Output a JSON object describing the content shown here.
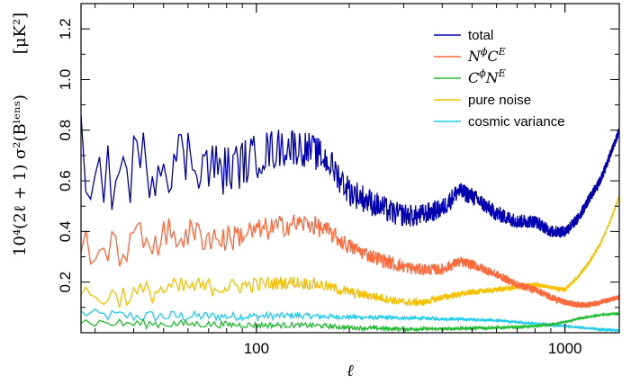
{
  "chart_data": {
    "type": "line",
    "xscale": "log",
    "xlim": [
      27,
      1500
    ],
    "ylim": [
      0,
      1.3
    ],
    "xlabel": "ℓ",
    "ylabel": "10⁴(2ℓ + 1) σ²(Bˡᵉⁿˢ)",
    "yunit": "[μK²]",
    "x_ticks": [
      {
        "value": 100,
        "label": "100"
      },
      {
        "value": 1000,
        "label": "1000"
      }
    ],
    "y_ticks": [
      {
        "value": 0.2,
        "label": "0.2"
      },
      {
        "value": 0.4,
        "label": "0.4"
      },
      {
        "value": 0.6,
        "label": "0.6"
      },
      {
        "value": 0.8,
        "label": "0.8"
      },
      {
        "value": 1.0,
        "label": "1.0"
      },
      {
        "value": 1.2,
        "label": "1.2"
      }
    ],
    "legend_position": "top-right",
    "grid": false,
    "series": [
      {
        "name": "total",
        "legend_kind": "text",
        "color": "#0000b0",
        "noise": 0.09,
        "noise_decay": 0.6,
        "points": [
          [
            27,
            0.72
          ],
          [
            30,
            0.62
          ],
          [
            35,
            0.6
          ],
          [
            40,
            0.66
          ],
          [
            50,
            0.68
          ],
          [
            60,
            0.7
          ],
          [
            70,
            0.66
          ],
          [
            80,
            0.64
          ],
          [
            90,
            0.67
          ],
          [
            110,
            0.72
          ],
          [
            130,
            0.74
          ],
          [
            150,
            0.72
          ],
          [
            170,
            0.68
          ],
          [
            200,
            0.56
          ],
          [
            240,
            0.51
          ],
          [
            280,
            0.47
          ],
          [
            330,
            0.46
          ],
          [
            400,
            0.49
          ],
          [
            450,
            0.56
          ],
          [
            500,
            0.54
          ],
          [
            600,
            0.47
          ],
          [
            700,
            0.44
          ],
          [
            800,
            0.44
          ],
          [
            900,
            0.4
          ],
          [
            1000,
            0.4
          ],
          [
            1100,
            0.45
          ],
          [
            1200,
            0.53
          ],
          [
            1300,
            0.6
          ],
          [
            1400,
            0.7
          ],
          [
            1500,
            0.8
          ]
        ]
      },
      {
        "name": "NϕCE",
        "legend_kind": "math",
        "legend_parts": [
          [
            "N",
            ""
          ],
          [
            "ϕ",
            "sup"
          ],
          [
            "C",
            ""
          ],
          [
            "E",
            "sup"
          ]
        ],
        "color": "#ff6a3c",
        "noise": 0.05,
        "noise_decay": 0.6,
        "points": [
          [
            27,
            0.38
          ],
          [
            30,
            0.33
          ],
          [
            35,
            0.32
          ],
          [
            40,
            0.36
          ],
          [
            50,
            0.38
          ],
          [
            60,
            0.39
          ],
          [
            70,
            0.38
          ],
          [
            80,
            0.37
          ],
          [
            90,
            0.39
          ],
          [
            110,
            0.41
          ],
          [
            130,
            0.43
          ],
          [
            150,
            0.43
          ],
          [
            170,
            0.4
          ],
          [
            200,
            0.34
          ],
          [
            240,
            0.3
          ],
          [
            280,
            0.27
          ],
          [
            330,
            0.25
          ],
          [
            400,
            0.25
          ],
          [
            450,
            0.28
          ],
          [
            500,
            0.27
          ],
          [
            600,
            0.23
          ],
          [
            700,
            0.19
          ],
          [
            800,
            0.17
          ],
          [
            900,
            0.14
          ],
          [
            1000,
            0.12
          ],
          [
            1100,
            0.11
          ],
          [
            1200,
            0.11
          ],
          [
            1300,
            0.12
          ],
          [
            1400,
            0.13
          ],
          [
            1500,
            0.14
          ]
        ]
      },
      {
        "name": "CϕNE",
        "legend_kind": "math",
        "legend_parts": [
          [
            "C",
            ""
          ],
          [
            "ϕ",
            "sup"
          ],
          [
            "N",
            ""
          ],
          [
            "E",
            "sup"
          ]
        ],
        "color": "#22bb33",
        "noise": 0.012,
        "noise_decay": 0.5,
        "points": [
          [
            27,
            0.045
          ],
          [
            30,
            0.04
          ],
          [
            40,
            0.035
          ],
          [
            60,
            0.035
          ],
          [
            80,
            0.032
          ],
          [
            100,
            0.03
          ],
          [
            130,
            0.03
          ],
          [
            160,
            0.028
          ],
          [
            200,
            0.02
          ],
          [
            300,
            0.015
          ],
          [
            400,
            0.015
          ],
          [
            500,
            0.018
          ],
          [
            600,
            0.02
          ],
          [
            700,
            0.022
          ],
          [
            800,
            0.026
          ],
          [
            900,
            0.032
          ],
          [
            1000,
            0.042
          ],
          [
            1100,
            0.055
          ],
          [
            1200,
            0.062
          ],
          [
            1300,
            0.07
          ],
          [
            1400,
            0.074
          ],
          [
            1500,
            0.075
          ]
        ]
      },
      {
        "name": "pure noise",
        "legend_kind": "text",
        "color": "#f5c000",
        "noise": 0.03,
        "noise_decay": 0.6,
        "points": [
          [
            27,
            0.16
          ],
          [
            30,
            0.14
          ],
          [
            40,
            0.15
          ],
          [
            50,
            0.17
          ],
          [
            60,
            0.18
          ],
          [
            80,
            0.18
          ],
          [
            100,
            0.19
          ],
          [
            130,
            0.2
          ],
          [
            160,
            0.19
          ],
          [
            200,
            0.16
          ],
          [
            250,
            0.14
          ],
          [
            300,
            0.12
          ],
          [
            350,
            0.12
          ],
          [
            400,
            0.14
          ],
          [
            500,
            0.16
          ],
          [
            600,
            0.17
          ],
          [
            700,
            0.18
          ],
          [
            800,
            0.19
          ],
          [
            900,
            0.18
          ],
          [
            1000,
            0.17
          ],
          [
            1100,
            0.22
          ],
          [
            1200,
            0.28
          ],
          [
            1300,
            0.35
          ],
          [
            1400,
            0.44
          ],
          [
            1500,
            0.54
          ]
        ]
      },
      {
        "name": "cosmic variance",
        "legend_kind": "text",
        "color": "#22ccee",
        "noise": 0.015,
        "noise_decay": 0.7,
        "points": [
          [
            27,
            0.08
          ],
          [
            30,
            0.07
          ],
          [
            40,
            0.065
          ],
          [
            60,
            0.065
          ],
          [
            80,
            0.065
          ],
          [
            100,
            0.065
          ],
          [
            130,
            0.068
          ],
          [
            160,
            0.065
          ],
          [
            200,
            0.062
          ],
          [
            300,
            0.058
          ],
          [
            400,
            0.055
          ],
          [
            500,
            0.052
          ],
          [
            600,
            0.048
          ],
          [
            700,
            0.042
          ],
          [
            800,
            0.036
          ],
          [
            900,
            0.03
          ],
          [
            1000,
            0.026
          ],
          [
            1100,
            0.021
          ],
          [
            1200,
            0.017
          ],
          [
            1300,
            0.013
          ],
          [
            1400,
            0.011
          ],
          [
            1500,
            0.009
          ]
        ]
      }
    ]
  }
}
